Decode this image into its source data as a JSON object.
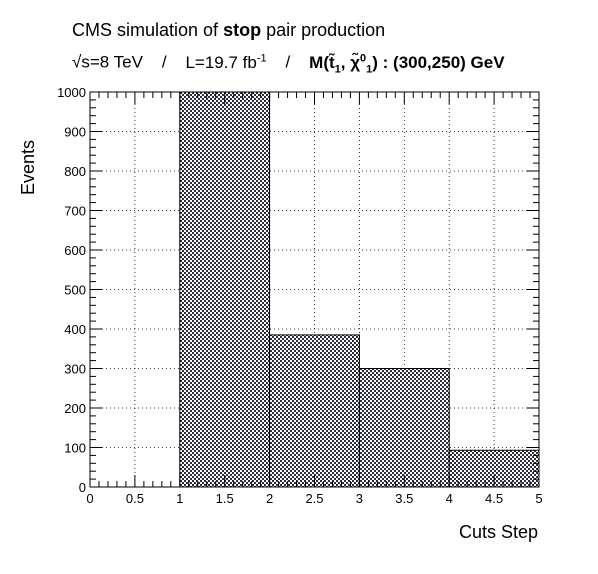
{
  "title": {
    "line1_pre": "CMS simulation of ",
    "line1_bold": "stop",
    "line1_post": " pair production",
    "line2_sqrt": "√s=8 TeV",
    "line2_sep": "/",
    "line2_lumi": "L=19.7 fb",
    "line2_lumi_exp": "-1",
    "line2_mass": "M(t̃",
    "line2_mass_sub1": "1",
    "line2_mass_chi": ", χ̃",
    "line2_mass_chi_sup": "0",
    "line2_mass_chi_sub": "1",
    "line2_mass_end": ") : (300,250) GeV"
  },
  "chart_data": {
    "type": "bar",
    "xlabel": "Cuts Step",
    "ylabel": "Events",
    "xlim": [
      0,
      5
    ],
    "ylim": [
      0,
      1000
    ],
    "bins": [
      {
        "x0": 0,
        "x1": 1,
        "value": 0
      },
      {
        "x0": 1,
        "x1": 2,
        "value": 1000
      },
      {
        "x0": 2,
        "x1": 3,
        "value": 385
      },
      {
        "x0": 3,
        "x1": 4,
        "value": 300
      },
      {
        "x0": 4,
        "x1": 5,
        "value": 93
      }
    ],
    "x_ticks": [
      "0",
      "0.5",
      "1",
      "1.5",
      "2",
      "2.5",
      "3",
      "3.5",
      "4",
      "4.5",
      "5"
    ],
    "y_ticks": [
      "0",
      "100",
      "200",
      "300",
      "400",
      "500",
      "600",
      "700",
      "800",
      "900",
      "1000"
    ],
    "grid": true,
    "fill": "#1a1a1a"
  }
}
